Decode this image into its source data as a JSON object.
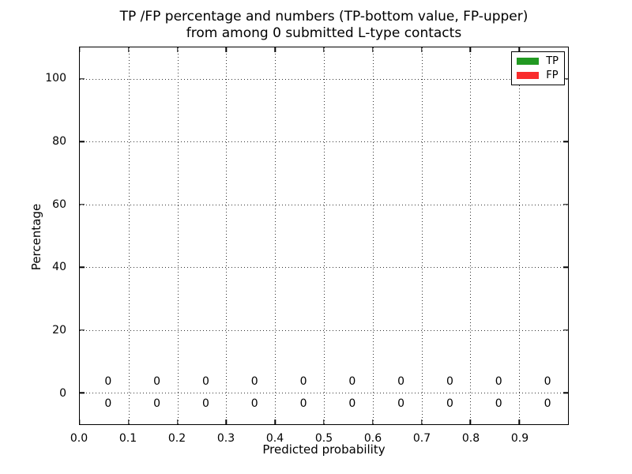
{
  "chart_data": {
    "type": "bar",
    "title_lines": [
      "TP /FP percentage and numbers (TP-bottom value, FP-upper)",
      "from among 0 submitted L-type contacts"
    ],
    "xlabel": "Predicted probability",
    "ylabel": "Percentage",
    "xlim": [
      0.0,
      1.0
    ],
    "ylim": [
      -10,
      110
    ],
    "xtick_values": [
      0.0,
      0.1,
      0.2,
      0.3,
      0.4,
      0.5,
      0.6,
      0.7,
      0.8,
      0.9
    ],
    "xtick_labels": [
      "0.0",
      "0.1",
      "0.2",
      "0.3",
      "0.4",
      "0.5",
      "0.6",
      "0.7",
      "0.8",
      "0.9"
    ],
    "ytick_values": [
      0,
      20,
      40,
      60,
      80,
      100
    ],
    "ytick_labels": [
      "0",
      "20",
      "40",
      "60",
      "80",
      "100"
    ],
    "grid": "dotted",
    "bins": {
      "centers": [
        0.05,
        0.15,
        0.25,
        0.35,
        0.45,
        0.55,
        0.65,
        0.75,
        0.85,
        0.95
      ],
      "width": 0.1
    },
    "series": [
      {
        "name": "TP",
        "color": "#229922",
        "values": [
          0,
          0,
          0,
          0,
          0,
          0,
          0,
          0,
          0,
          0
        ]
      },
      {
        "name": "FP",
        "color": "#f92c2c",
        "values": [
          0,
          0,
          0,
          0,
          0,
          0,
          0,
          0,
          0,
          0
        ]
      }
    ],
    "annotations": {
      "x_positions": [
        0.058,
        0.158,
        0.258,
        0.358,
        0.458,
        0.558,
        0.658,
        0.758,
        0.858,
        0.958
      ],
      "fp_row": {
        "y": 3.5,
        "labels": [
          "0",
          "0",
          "0",
          "0",
          "0",
          "0",
          "0",
          "0",
          "0",
          "0"
        ]
      },
      "tp_row": {
        "y": -3.5,
        "labels": [
          "0",
          "0",
          "0",
          "0",
          "0",
          "0",
          "0",
          "0",
          "0",
          "0"
        ]
      }
    },
    "legend": {
      "position": "upper right",
      "entries": [
        {
          "label": "TP",
          "color": "#229922"
        },
        {
          "label": "FP",
          "color": "#f92c2c"
        }
      ]
    }
  },
  "colors": {
    "background": "#ffffff",
    "frame": "#000000",
    "grid": "#333333",
    "text": "#000000"
  }
}
